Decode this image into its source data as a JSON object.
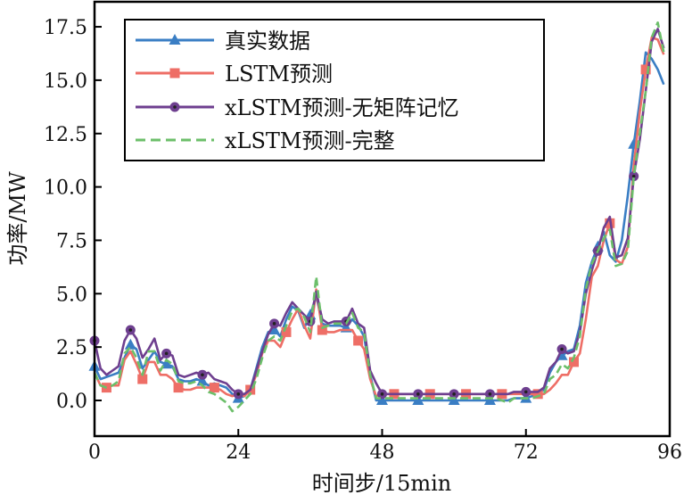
{
  "chart_data": {
    "type": "line",
    "xlabel": "时间步/15min",
    "ylabel": "功率/MW",
    "xlim": [
      0,
      96
    ],
    "ylim": [
      -0.6,
      18.0
    ],
    "xticks": [
      0,
      24,
      48,
      72,
      96
    ],
    "xtick_labels": [
      "0",
      "24",
      "48",
      "72",
      "96"
    ],
    "yticks": [
      0,
      2.5,
      5,
      7.5,
      10,
      12.5,
      15,
      17.5
    ],
    "ytick_labels": [
      "0.0",
      "2.5",
      "5.0",
      "7.5",
      "10.0",
      "12.5",
      "15.0",
      "17.5"
    ],
    "grid": false,
    "legend_position": "top-left",
    "series": [
      {
        "name": "真实数据",
        "color": "#3a7ec4",
        "marker": "triangle",
        "dash": "solid",
        "values": [
          1.6,
          1.0,
          1.1,
          1.2,
          1.3,
          2.0,
          2.6,
          2.4,
          1.5,
          1.9,
          2.3,
          1.8,
          1.7,
          1.6,
          1.0,
          0.9,
          0.9,
          1.0,
          0.9,
          0.7,
          0.8,
          0.7,
          0.6,
          0.3,
          0.1,
          0.2,
          0.5,
          1.5,
          2.5,
          3.2,
          3.3,
          3.0,
          3.8,
          4.4,
          4.2,
          3.4,
          4.0,
          4.9,
          3.6,
          3.5,
          3.5,
          3.5,
          3.4,
          3.8,
          3.5,
          3.0,
          1.2,
          0.0,
          0,
          0,
          0,
          0,
          0,
          0,
          0,
          0,
          0,
          0,
          0,
          0,
          0,
          0,
          0,
          0,
          0,
          0,
          0,
          0,
          0,
          0,
          0.1,
          0.1,
          0.1,
          0.2,
          0.3,
          0.5,
          1.3,
          1.8,
          2.1,
          2.3,
          2.4,
          3.5,
          5.5,
          6.5,
          7.2,
          7.9,
          6.8,
          6.5,
          7.5,
          9.6,
          12.0,
          14.0,
          16.3,
          16.0,
          15.5,
          14.8
        ]
      },
      {
        "name": "LSTM预测",
        "color": "#ee6e66",
        "marker": "square",
        "dash": "solid",
        "values": [
          1.3,
          0.7,
          0.6,
          0.7,
          0.7,
          1.9,
          2.3,
          1.7,
          1.0,
          1.8,
          1.8,
          1.2,
          1.2,
          1.0,
          0.6,
          0.5,
          0.5,
          0.6,
          0.6,
          0.6,
          0.6,
          0.5,
          0.3,
          0.2,
          0.3,
          0.2,
          0.5,
          1.2,
          2.2,
          2.8,
          2.8,
          2.5,
          3.2,
          3.8,
          4.3,
          3.5,
          2.9,
          5.2,
          3.3,
          3.2,
          3.2,
          3.3,
          3.3,
          3.3,
          2.8,
          2.4,
          1.0,
          0.2,
          0.3,
          0.3,
          0.3,
          0.3,
          0.3,
          0.3,
          0.3,
          0.3,
          0.3,
          0.3,
          0.3,
          0.3,
          0.3,
          0.3,
          0.3,
          0.3,
          0.3,
          0.3,
          0.3,
          0.3,
          0.3,
          0.3,
          0.3,
          0.3,
          0.3,
          0.3,
          0.3,
          0.3,
          0.5,
          0.8,
          1.2,
          1.2,
          1.8,
          2.2,
          3.8,
          5.8,
          6.3,
          7.5,
          8.3,
          6.6,
          6.4,
          7.2,
          11.0,
          13.5,
          15.5,
          17.0,
          16.9,
          16.2
        ]
      },
      {
        "name": "xLSTM预测-无矩阵记忆",
        "color": "#6e3f8f",
        "marker": "circle",
        "dash": "solid",
        "values": [
          2.8,
          1.5,
          1.2,
          1.4,
          1.6,
          2.8,
          3.3,
          2.9,
          2.0,
          2.4,
          2.9,
          1.9,
          2.2,
          2.1,
          1.2,
          1.1,
          1.2,
          1.3,
          1.2,
          1.3,
          1.0,
          0.9,
          0.8,
          0.5,
          0.3,
          0.3,
          0.5,
          1.4,
          2.3,
          3.1,
          3.6,
          3.5,
          4.1,
          4.6,
          4.3,
          4.0,
          3.7,
          5.1,
          3.8,
          3.6,
          3.7,
          3.7,
          3.7,
          4.3,
          3.6,
          3.4,
          1.4,
          0.8,
          0.3,
          0.3,
          0.3,
          0.3,
          0.3,
          0.3,
          0.3,
          0.3,
          0.3,
          0.3,
          0.3,
          0.3,
          0.3,
          0.3,
          0.3,
          0.3,
          0.3,
          0.3,
          0.3,
          0.3,
          0.3,
          0.3,
          0.4,
          0.4,
          0.4,
          0.4,
          0.4,
          0.6,
          1.5,
          1.8,
          2.4,
          2.2,
          2.3,
          3.2,
          5.0,
          6.1,
          7.0,
          8.1,
          8.6,
          6.7,
          6.8,
          7.6,
          10.5,
          12.2,
          14.5,
          16.8,
          17.4,
          16.5
        ]
      },
      {
        "name": "xLSTM预测-完整",
        "color": "#6cbf6a",
        "marker": "none",
        "dash": "dashed",
        "values": [
          1.3,
          0.7,
          0.6,
          0.7,
          0.9,
          2.2,
          2.5,
          2.0,
          1.2,
          2.3,
          2.3,
          1.4,
          1.9,
          1.7,
          0.9,
          0.8,
          0.8,
          0.9,
          0.7,
          0.4,
          0.3,
          0.1,
          -0.1,
          -0.5,
          -0.3,
          0.0,
          0.3,
          1.0,
          2.0,
          2.8,
          3.0,
          2.8,
          3.5,
          4.2,
          4.3,
          3.9,
          3.2,
          5.8,
          3.4,
          3.5,
          3.6,
          3.6,
          3.6,
          4.1,
          3.4,
          3.2,
          1.2,
          0.1,
          0.1,
          0.1,
          0.1,
          0.1,
          0.1,
          0.1,
          0.1,
          0.1,
          0.1,
          0.1,
          0.1,
          0.1,
          0.1,
          0.1,
          0.1,
          0.1,
          0.1,
          0.1,
          0.1,
          0.1,
          0.0,
          -0.1,
          0.1,
          0.1,
          0.1,
          0.1,
          0.2,
          0.3,
          1.0,
          1.2,
          1.7,
          1.5,
          2.0,
          3.0,
          5.2,
          6.4,
          7.0,
          7.6,
          8.0,
          6.3,
          6.4,
          7.0,
          10.5,
          12.5,
          14.5,
          17.0,
          17.7,
          16.3
        ]
      }
    ]
  }
}
